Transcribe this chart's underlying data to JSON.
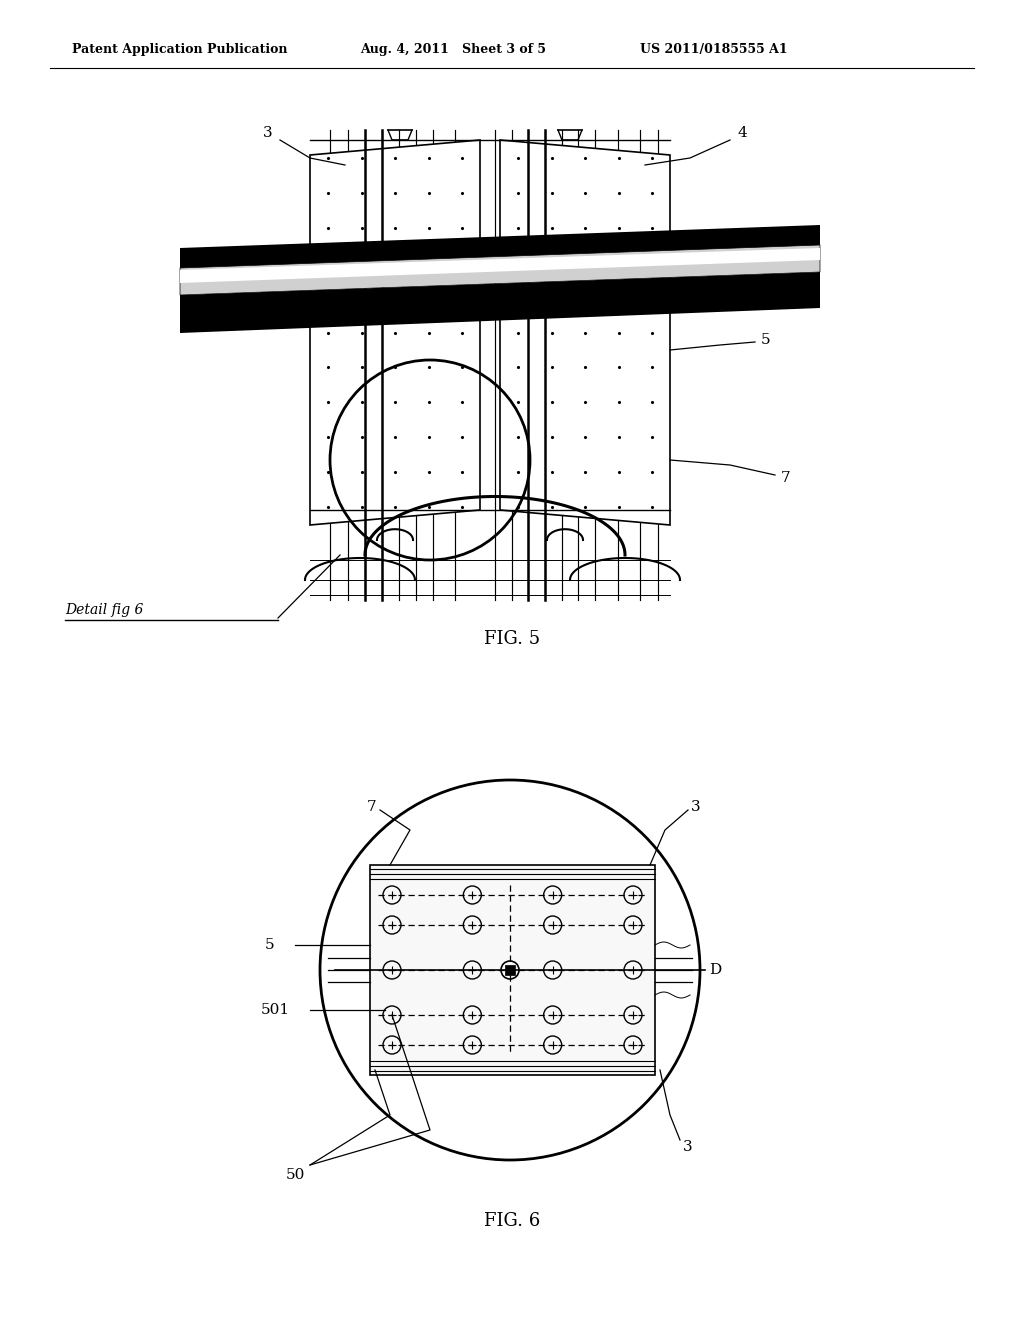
{
  "header_left": "Patent Application Publication",
  "header_mid": "Aug. 4, 2011   Sheet 3 of 5",
  "header_right": "US 2011/0185555 A1",
  "fig5_label": "FIG. 5",
  "fig6_label": "FIG. 6",
  "detail_label": "Detail fig 6",
  "background_color": "#ffffff",
  "line_color": "#000000"
}
